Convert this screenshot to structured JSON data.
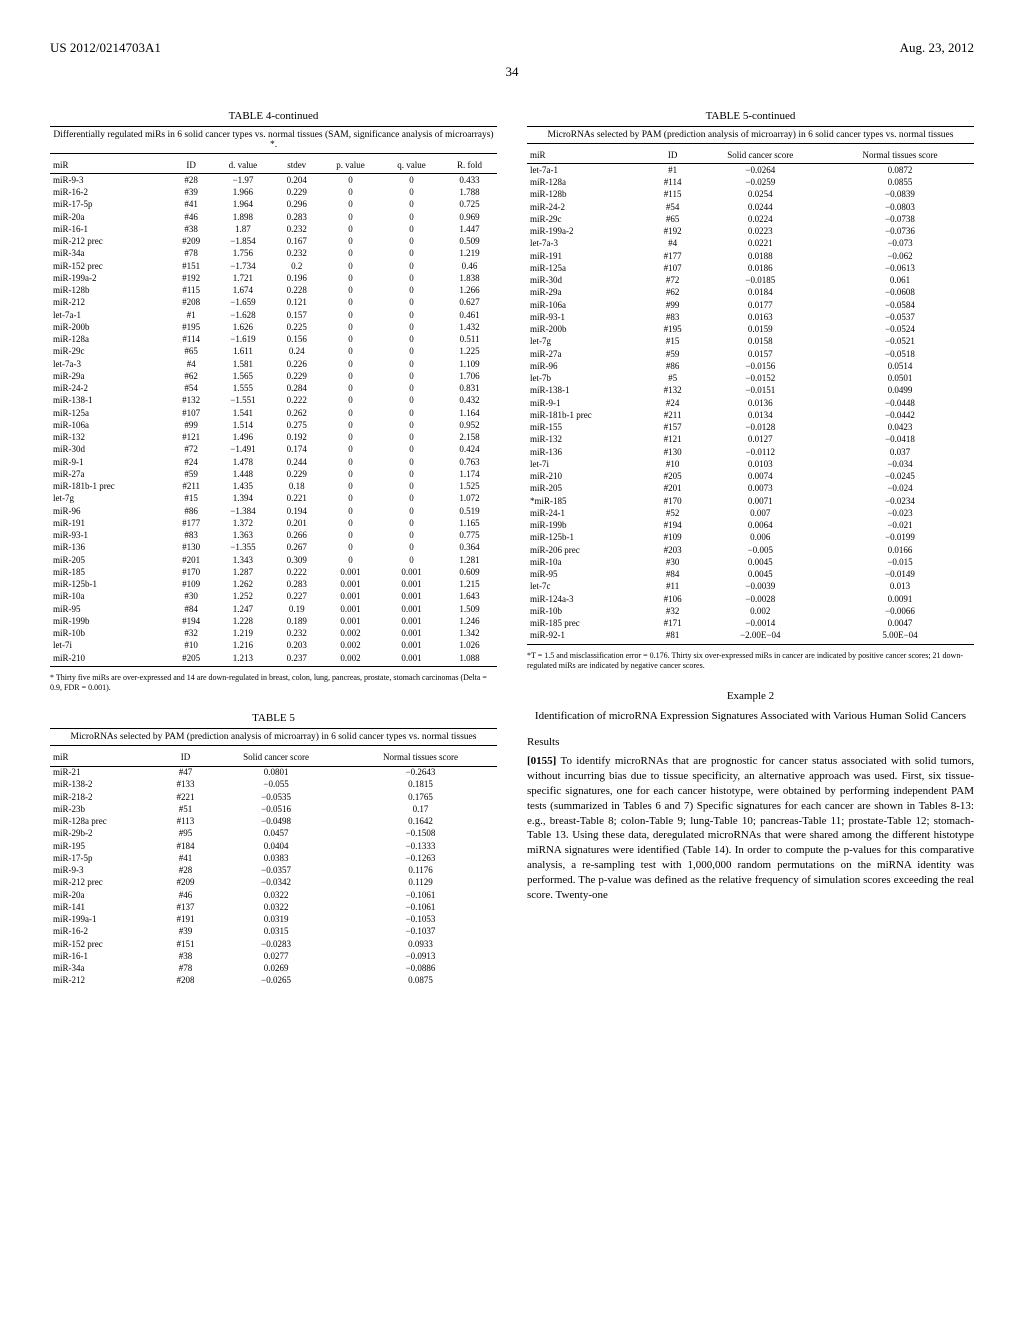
{
  "header": {
    "left": "US 2012/0214703A1",
    "right": "Aug. 23, 2012",
    "page": "34"
  },
  "table4": {
    "title": "TABLE 4-continued",
    "caption": "Differentially regulated miRs in 6 solid cancer types vs. normal tissues (SAM, significance analysis of microarrays) *.",
    "headers": [
      "miR",
      "ID",
      "d. value",
      "stdev",
      "p. value",
      "q. value",
      "R. fold"
    ],
    "rows": [
      [
        "miR-9-3",
        "#28",
        "−1.97",
        "0.204",
        "0",
        "0",
        "0.433"
      ],
      [
        "miR-16-2",
        "#39",
        "1.966",
        "0.229",
        "0",
        "0",
        "1.788"
      ],
      [
        "miR-17-5p",
        "#41",
        "1.964",
        "0.296",
        "0",
        "0",
        "0.725"
      ],
      [
        "miR-20a",
        "#46",
        "1.898",
        "0.283",
        "0",
        "0",
        "0.969"
      ],
      [
        "miR-16-1",
        "#38",
        "1.87",
        "0.232",
        "0",
        "0",
        "1.447"
      ],
      [
        "miR-212 prec",
        "#209",
        "−1.854",
        "0.167",
        "0",
        "0",
        "0.509"
      ],
      [
        "miR-34a",
        "#78",
        "1.756",
        "0.232",
        "0",
        "0",
        "1.219"
      ],
      [
        "miR-152 prec",
        "#151",
        "−1.734",
        "0.2",
        "0",
        "0",
        "0.46"
      ],
      [
        "miR-199a-2",
        "#192",
        "1.721",
        "0.196",
        "0",
        "0",
        "1.838"
      ],
      [
        "miR-128b",
        "#115",
        "1.674",
        "0.228",
        "0",
        "0",
        "1.266"
      ],
      [
        "miR-212",
        "#208",
        "−1.659",
        "0.121",
        "0",
        "0",
        "0.627"
      ],
      [
        "let-7a-1",
        "#1",
        "−1.628",
        "0.157",
        "0",
        "0",
        "0.461"
      ],
      [
        "miR-200b",
        "#195",
        "1.626",
        "0.225",
        "0",
        "0",
        "1.432"
      ],
      [
        "miR-128a",
        "#114",
        "−1.619",
        "0.156",
        "0",
        "0",
        "0.511"
      ],
      [
        "miR-29c",
        "#65",
        "1.611",
        "0.24",
        "0",
        "0",
        "1.225"
      ],
      [
        "let-7a-3",
        "#4",
        "1.581",
        "0.226",
        "0",
        "0",
        "1.109"
      ],
      [
        "miR-29a",
        "#62",
        "1.565",
        "0.229",
        "0",
        "0",
        "1.706"
      ],
      [
        "miR-24-2",
        "#54",
        "1.555",
        "0.284",
        "0",
        "0",
        "0.831"
      ],
      [
        "miR-138-1",
        "#132",
        "−1.551",
        "0.222",
        "0",
        "0",
        "0.432"
      ],
      [
        "miR-125a",
        "#107",
        "1.541",
        "0.262",
        "0",
        "0",
        "1.164"
      ],
      [
        "miR-106a",
        "#99",
        "1.514",
        "0.275",
        "0",
        "0",
        "0.952"
      ],
      [
        "miR-132",
        "#121",
        "1.496",
        "0.192",
        "0",
        "0",
        "2.158"
      ],
      [
        "miR-30d",
        "#72",
        "−1.491",
        "0.174",
        "0",
        "0",
        "0.424"
      ],
      [
        "miR-9-1",
        "#24",
        "1.478",
        "0.244",
        "0",
        "0",
        "0.763"
      ],
      [
        "miR-27a",
        "#59",
        "1.448",
        "0.229",
        "0",
        "0",
        "1.174"
      ],
      [
        "miR-181b-1 prec",
        "#211",
        "1.435",
        "0.18",
        "0",
        "0",
        "1.525"
      ],
      [
        "let-7g",
        "#15",
        "1.394",
        "0.221",
        "0",
        "0",
        "1.072"
      ],
      [
        "miR-96",
        "#86",
        "−1.384",
        "0.194",
        "0",
        "0",
        "0.519"
      ],
      [
        "miR-191",
        "#177",
        "1.372",
        "0.201",
        "0",
        "0",
        "1.165"
      ],
      [
        "miR-93-1",
        "#83",
        "1.363",
        "0.266",
        "0",
        "0",
        "0.775"
      ],
      [
        "miR-136",
        "#130",
        "−1.355",
        "0.267",
        "0",
        "0",
        "0.364"
      ],
      [
        "miR-205",
        "#201",
        "1.343",
        "0.309",
        "0",
        "0",
        "1.281"
      ],
      [
        "miR-185",
        "#170",
        "1.287",
        "0.222",
        "0.001",
        "0.001",
        "0.609"
      ],
      [
        "miR-125b-1",
        "#109",
        "1.262",
        "0.283",
        "0.001",
        "0.001",
        "1.215"
      ],
      [
        "miR-10a",
        "#30",
        "1.252",
        "0.227",
        "0.001",
        "0.001",
        "1.643"
      ],
      [
        "miR-95",
        "#84",
        "1.247",
        "0.19",
        "0.001",
        "0.001",
        "1.509"
      ],
      [
        "miR-199b",
        "#194",
        "1.228",
        "0.189",
        "0.001",
        "0.001",
        "1.246"
      ],
      [
        "miR-10b",
        "#32",
        "1.219",
        "0.232",
        "0.002",
        "0.001",
        "1.342"
      ],
      [
        "let-7i",
        "#10",
        "1.216",
        "0.203",
        "0.002",
        "0.001",
        "1.026"
      ],
      [
        "miR-210",
        "#205",
        "1.213",
        "0.237",
        "0.002",
        "0.001",
        "1.088"
      ]
    ],
    "footnote": "* Thirty five miRs are over-expressed and 14 are down-regulated in breast, colon, lung, pancreas, prostate, stomach carcinomas (Delta = 0.9, FDR = 0.001)."
  },
  "table5a": {
    "title": "TABLE 5",
    "caption": "MicroRNAs selected by PAM (prediction analysis of microarray) in 6 solid cancer types vs. normal tissues",
    "headers": [
      "miR",
      "ID",
      "Solid cancer score",
      "Normal tissues score"
    ],
    "rows": [
      [
        "miR-21",
        "#47",
        "0.0801",
        "−0.2643"
      ],
      [
        "miR-138-2",
        "#133",
        "−0.055",
        "0.1815"
      ],
      [
        "miR-218-2",
        "#221",
        "−0.0535",
        "0.1765"
      ],
      [
        "miR-23b",
        "#51",
        "−0.0516",
        "0.17"
      ],
      [
        "miR-128a prec",
        "#113",
        "−0.0498",
        "0.1642"
      ],
      [
        "miR-29b-2",
        "#95",
        "0.0457",
        "−0.1508"
      ],
      [
        "miR-195",
        "#184",
        "0.0404",
        "−0.1333"
      ],
      [
        "miR-17-5p",
        "#41",
        "0.0383",
        "−0.1263"
      ],
      [
        "miR-9-3",
        "#28",
        "−0.0357",
        "0.1176"
      ],
      [
        "miR-212 prec",
        "#209",
        "−0.0342",
        "0.1129"
      ],
      [
        "miR-20a",
        "#46",
        "0.0322",
        "−0.1061"
      ],
      [
        "miR-141",
        "#137",
        "0.0322",
        "−0.1061"
      ],
      [
        "miR-199a-1",
        "#191",
        "0.0319",
        "−0.1053"
      ],
      [
        "miR-16-2",
        "#39",
        "0.0315",
        "−0.1037"
      ],
      [
        "miR-152 prec",
        "#151",
        "−0.0283",
        "0.0933"
      ],
      [
        "miR-16-1",
        "#38",
        "0.0277",
        "−0.0913"
      ],
      [
        "miR-34a",
        "#78",
        "0.0269",
        "−0.0886"
      ],
      [
        "miR-212",
        "#208",
        "−0.0265",
        "0.0875"
      ]
    ]
  },
  "table5b": {
    "title": "TABLE 5-continued",
    "caption": "MicroRNAs selected by PAM (prediction analysis of microarray) in 6 solid cancer types vs. normal tissues",
    "headers": [
      "miR",
      "ID",
      "Solid cancer score",
      "Normal tissues score"
    ],
    "rows": [
      [
        "let-7a-1",
        "#1",
        "−0.0264",
        "0.0872"
      ],
      [
        "miR-128a",
        "#114",
        "−0.0259",
        "0.0855"
      ],
      [
        "miR-128b",
        "#115",
        "0.0254",
        "−0.0839"
      ],
      [
        "miR-24-2",
        "#54",
        "0.0244",
        "−0.0803"
      ],
      [
        "miR-29c",
        "#65",
        "0.0224",
        "−0.0738"
      ],
      [
        "miR-199a-2",
        "#192",
        "0.0223",
        "−0.0736"
      ],
      [
        "let-7a-3",
        "#4",
        "0.0221",
        "−0.073"
      ],
      [
        "miR-191",
        "#177",
        "0.0188",
        "−0.062"
      ],
      [
        "miR-125a",
        "#107",
        "0.0186",
        "−0.0613"
      ],
      [
        "miR-30d",
        "#72",
        "−0.0185",
        "0.061"
      ],
      [
        "miR-29a",
        "#62",
        "0.0184",
        "−0.0608"
      ],
      [
        "miR-106a",
        "#99",
        "0.0177",
        "−0.0584"
      ],
      [
        "miR-93-1",
        "#83",
        "0.0163",
        "−0.0537"
      ],
      [
        "miR-200b",
        "#195",
        "0.0159",
        "−0.0524"
      ],
      [
        "let-7g",
        "#15",
        "0.0158",
        "−0.0521"
      ],
      [
        "miR-27a",
        "#59",
        "0.0157",
        "−0.0518"
      ],
      [
        "miR-96",
        "#86",
        "−0.0156",
        "0.0514"
      ],
      [
        "let-7b",
        "#5",
        "−0.0152",
        "0.0501"
      ],
      [
        "miR-138-1",
        "#132",
        "−0.0151",
        "0.0499"
      ],
      [
        "miR-9-1",
        "#24",
        "0.0136",
        "−0.0448"
      ],
      [
        "miR-181b-1 prec",
        "#211",
        "0.0134",
        "−0.0442"
      ],
      [
        "miR-155",
        "#157",
        "−0.0128",
        "0.0423"
      ],
      [
        "miR-132",
        "#121",
        "0.0127",
        "−0.0418"
      ],
      [
        "miR-136",
        "#130",
        "−0.0112",
        "0.037"
      ],
      [
        "let-7i",
        "#10",
        "0.0103",
        "−0.034"
      ],
      [
        "miR-210",
        "#205",
        "0.0074",
        "−0.0245"
      ],
      [
        "miR-205",
        "#201",
        "0.0073",
        "−0.024"
      ],
      [
        "*miR-185",
        "#170",
        "0.0071",
        "−0.0234"
      ],
      [
        "miR-24-1",
        "#52",
        "0.007",
        "−0.023"
      ],
      [
        "miR-199b",
        "#194",
        "0.0064",
        "−0.021"
      ],
      [
        "miR-125b-1",
        "#109",
        "0.006",
        "−0.0199"
      ],
      [
        "miR-206 prec",
        "#203",
        "−0.005",
        "0.0166"
      ],
      [
        "miR-10a",
        "#30",
        "0.0045",
        "−0.015"
      ],
      [
        "miR-95",
        "#84",
        "0.0045",
        "−0.0149"
      ],
      [
        "let-7c",
        "#11",
        "−0.0039",
        "0.013"
      ],
      [
        "miR-124a-3",
        "#106",
        "−0.0028",
        "0.0091"
      ],
      [
        "miR-10b",
        "#32",
        "0.002",
        "−0.0066"
      ],
      [
        "miR-185 prec",
        "#171",
        "−0.0014",
        "0.0047"
      ],
      [
        "miR-92-1",
        "#81",
        "−2.00E−04",
        "5.00E−04"
      ]
    ],
    "footnote": "*T = 1.5 and misclassification error = 0.176. Thirty six over-expressed miRs in cancer are indicated by positive cancer scores; 21 down-regulated miRs are indicated by negative cancer scores."
  },
  "example": {
    "label": "Example 2",
    "title": "Identification of microRNA Expression Signatures Associated with Various Human Solid Cancers",
    "resultsHead": "Results",
    "p155num": "[0155]",
    "p155": "To identify microRNAs that are prognostic for cancer status associated with solid tumors, without incurring bias due to tissue specificity, an alternative approach was used. First, six tissue-specific signatures, one for each cancer histotype, were obtained by performing independent PAM tests (summarized in Tables 6 and 7) Specific signatures for each cancer are shown in Tables 8-13: e.g., breast-Table 8; colon-Table 9; lung-Table 10; pancreas-Table 11; prostate-Table 12; stomach-Table 13. Using these data, deregulated microRNAs that were shared among the different histotype miRNA signatures were identified (Table 14). In order to compute the p-values for this comparative analysis, a re-sampling test with 1,000,000 random permutations on the miRNA identity was performed. The p-value was defined as the relative frequency of simulation scores exceeding the real score. Twenty-one"
  }
}
